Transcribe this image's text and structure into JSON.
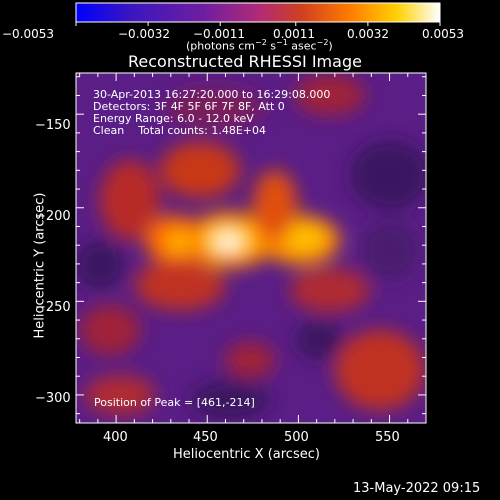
{
  "colorbar": {
    "tick_labels": [
      "−0.0053",
      "−0.0032",
      "−0.0011",
      "0.0011",
      "0.0032",
      "0.0053"
    ],
    "range": [
      -0.0053,
      0.0053
    ],
    "units_prefix": "(photons cm",
    "units_exp1": "−2",
    "units_mid": " s",
    "units_exp2": "−1",
    "units_mid2": " asec",
    "units_exp3": "−2",
    "units_suffix": ")",
    "colors": [
      "#0000ff",
      "#3a16c0",
      "#6f1ea0",
      "#b02a78",
      "#d04020",
      "#ff7a00",
      "#ffd000",
      "#ffffff"
    ]
  },
  "chart_data": {
    "type": "heatmap",
    "title": "Reconstructed RHESSI Image",
    "xlabel": "Heliocentric X (arcsec)",
    "ylabel": "Heliocentric Y (arcsec)",
    "xlim": [
      378,
      570
    ],
    "ylim": [
      -315,
      -128
    ],
    "xticks": [
      400,
      450,
      500,
      550
    ],
    "yticks": [
      -150,
      -200,
      -250,
      -300
    ],
    "annotations": [
      "30-Apr-2013 16:27:20.000 to 16:29:08.000",
      "Detectors: 3F 4F 5F 6F 7F 8F, Att 0",
      "Energy Range: 6.0 - 12.0 keV",
      "Clean    Total counts: 1.48E+04"
    ],
    "peak_label": "Position of Peak = [461,-214]",
    "peak": [
      461,
      -214
    ]
  },
  "footer": {
    "timestamp": "13-May-2022 09:15"
  }
}
